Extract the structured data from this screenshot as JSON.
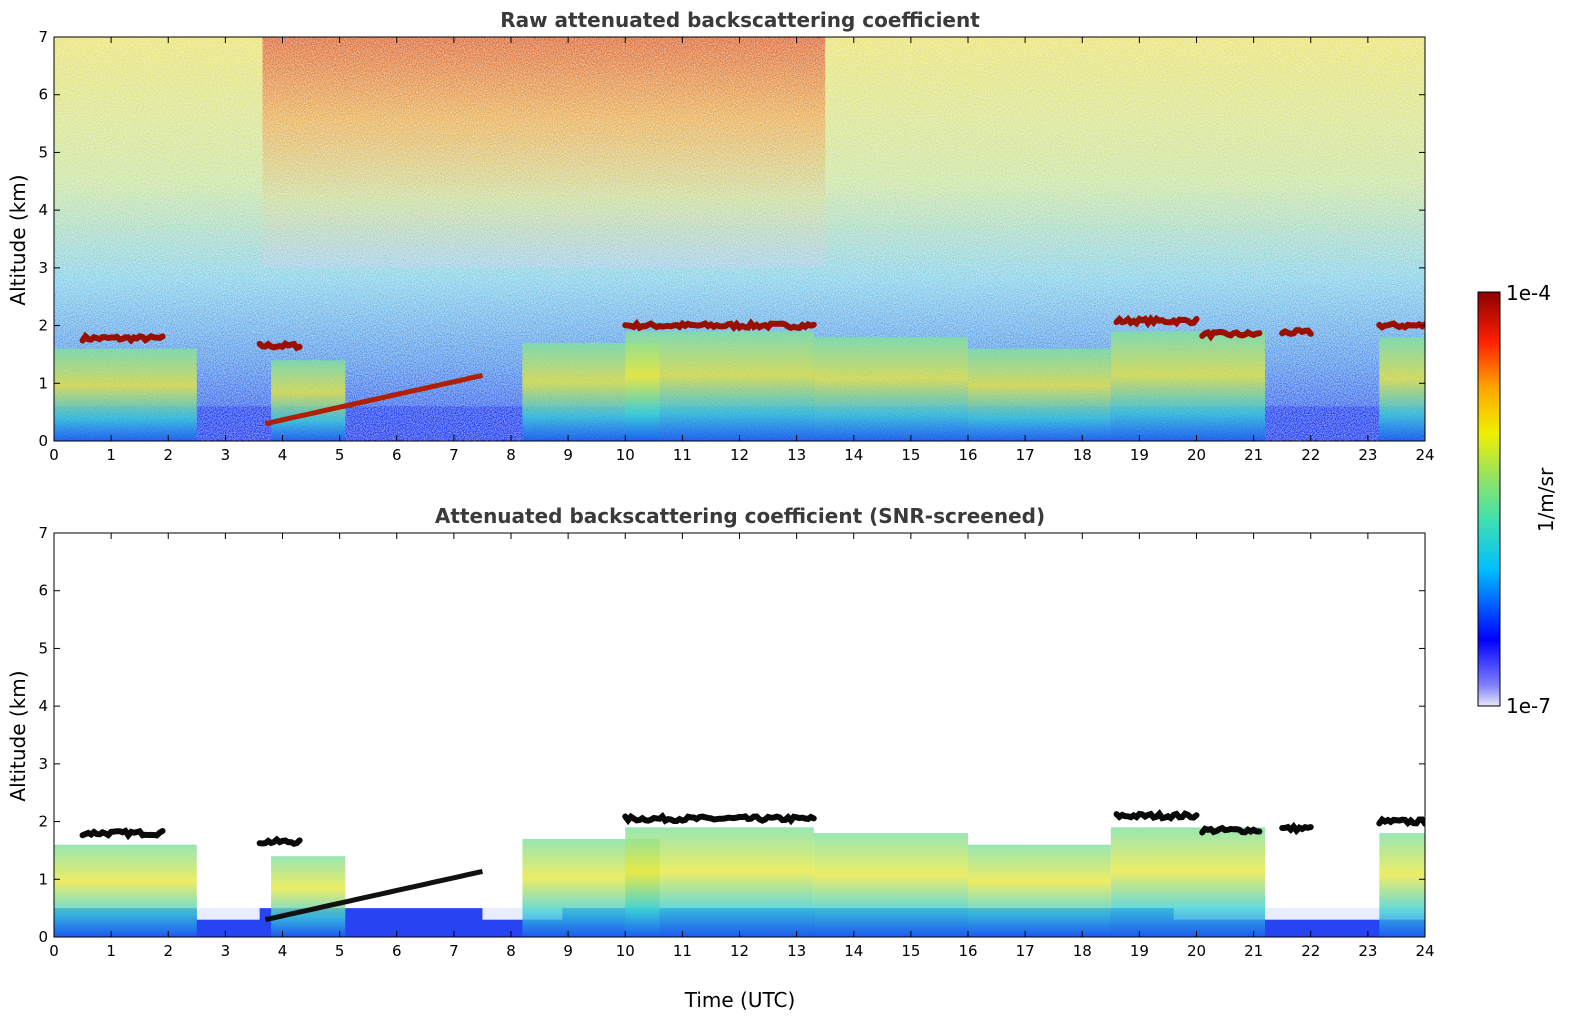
{
  "chart_data": [
    {
      "type": "heatmap",
      "title": "Raw attenuated backscattering coefficient",
      "xlabel": "",
      "ylabel": "Altitude (km)",
      "xlim": [
        0,
        24
      ],
      "ylim": [
        0,
        7
      ],
      "x_ticks": [
        "0",
        "1",
        "2",
        "3",
        "4",
        "5",
        "6",
        "7",
        "8",
        "9",
        "10",
        "11",
        "12",
        "13",
        "14",
        "15",
        "16",
        "17",
        "18",
        "19",
        "20",
        "21",
        "22",
        "23",
        "24"
      ],
      "y_ticks": [
        "0",
        "1",
        "2",
        "3",
        "4",
        "5",
        "6",
        "7"
      ],
      "grid": false,
      "cloud_layers": [
        {
          "t": [
            0.5,
            1.9
          ],
          "alt": 1.78
        },
        {
          "t": [
            3.6,
            4.3
          ],
          "alt": 1.65
        },
        {
          "t": [
            10.0,
            13.3
          ],
          "alt": 2.0
        },
        {
          "t": [
            18.6,
            20.0
          ],
          "alt": 2.08
        },
        {
          "t": [
            20.1,
            21.1
          ],
          "alt": 1.85
        },
        {
          "t": [
            21.5,
            22.0
          ],
          "alt": 1.88
        },
        {
          "t": [
            23.2,
            24.0
          ],
          "alt": 2.0
        }
      ]
    },
    {
      "type": "heatmap",
      "title": "Attenuated backscattering coefficient (SNR-screened)",
      "xlabel": "Time (UTC)",
      "ylabel": "Altitude (km)",
      "xlim": [
        0,
        24
      ],
      "ylim": [
        0,
        7
      ],
      "x_ticks": [
        "0",
        "1",
        "2",
        "3",
        "4",
        "5",
        "6",
        "7",
        "8",
        "9",
        "10",
        "11",
        "12",
        "13",
        "14",
        "15",
        "16",
        "17",
        "18",
        "19",
        "20",
        "21",
        "22",
        "23",
        "24"
      ],
      "y_ticks": [
        "0",
        "1",
        "2",
        "3",
        "4",
        "5",
        "6",
        "7"
      ],
      "grid": false,
      "cloud_layers": [
        {
          "t": [
            0.5,
            1.9
          ],
          "alt": 1.8
        },
        {
          "t": [
            3.6,
            4.3
          ],
          "alt": 1.65
        },
        {
          "t": [
            10.0,
            13.3
          ],
          "alt": 2.05
        },
        {
          "t": [
            18.6,
            20.0
          ],
          "alt": 2.1
        },
        {
          "t": [
            20.1,
            21.1
          ],
          "alt": 1.85
        },
        {
          "t": [
            21.5,
            22.0
          ],
          "alt": 1.88
        },
        {
          "t": [
            23.2,
            24.0
          ],
          "alt": 2.0
        }
      ]
    }
  ],
  "colorbar": {
    "label": "1/m/sr",
    "max_label": "1e-4",
    "min_label": "1e-7",
    "scale": "log",
    "range": [
      1e-07,
      0.0001
    ],
    "colors": [
      "#e6e6f5",
      "#0000ff",
      "#00bfff",
      "#3fe0b0",
      "#9be35c",
      "#f0f000",
      "#ffa500",
      "#ff2000",
      "#8b0000"
    ]
  }
}
